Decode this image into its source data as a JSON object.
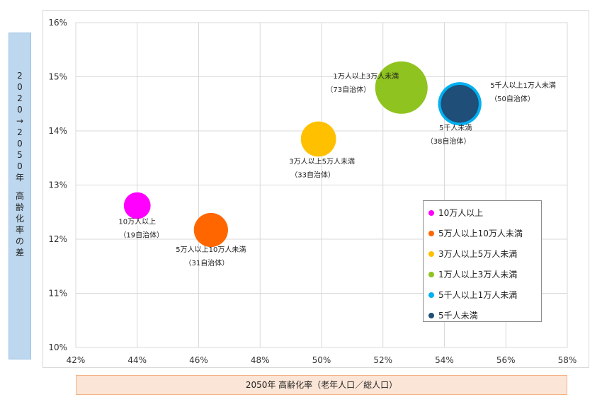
{
  "chart_data": {
    "type": "bubble",
    "xlabel": "2050年 高齢化率（老年人口／総人口）",
    "ylabel": "2020→2050年 高齢化率の差",
    "ylabel_chars": [
      "2",
      "0",
      "2",
      "0",
      "→",
      "2",
      "0",
      "5",
      "0",
      "年",
      "",
      "高",
      "齢",
      "化",
      "率",
      "の",
      "差"
    ],
    "xlim": [
      42,
      58
    ],
    "ylim": [
      10,
      16
    ],
    "xticks": [
      "42%",
      "44%",
      "46%",
      "48%",
      "50%",
      "52%",
      "54%",
      "56%",
      "58%"
    ],
    "yticks": [
      "10%",
      "11%",
      "12%",
      "13%",
      "14%",
      "15%",
      "16%"
    ],
    "grid": true,
    "legend_position": "lower-right",
    "series": [
      {
        "name": "10万人以上",
        "x": 44.0,
        "y": 12.62,
        "count": 19,
        "color": "#ff00ff",
        "label1": "10万人以上",
        "label2": "（19自治体）"
      },
      {
        "name": "5万人以上10万人未満",
        "x": 46.4,
        "y": 12.17,
        "count": 31,
        "color": "#ff6600",
        "label1": "5万人以上10万人未満",
        "label2": "（31自治体）"
      },
      {
        "name": "3万人以上5万人未満",
        "x": 49.9,
        "y": 13.85,
        "count": 33,
        "color": "#ffc000",
        "label1": "3万人以上5万人未満",
        "label2": "（33自治体）"
      },
      {
        "name": "1万人以上3万人未満",
        "x": 52.6,
        "y": 14.8,
        "count": 73,
        "color": "#8fc31f",
        "label1": "1万人以上3万人未満",
        "label2": "（73自治体）"
      },
      {
        "name": "5千人以上1万人未満",
        "x": 54.5,
        "y": 14.5,
        "count": 50,
        "color": "#00b0f0",
        "label1": "5千人以上1万人未満",
        "label2": "（50自治体）"
      },
      {
        "name": "5千人未満",
        "x": 54.5,
        "y": 14.5,
        "count": 38,
        "color": "#1f4e79",
        "label1": "5千人未満",
        "label2": "（38自治体）"
      }
    ]
  }
}
